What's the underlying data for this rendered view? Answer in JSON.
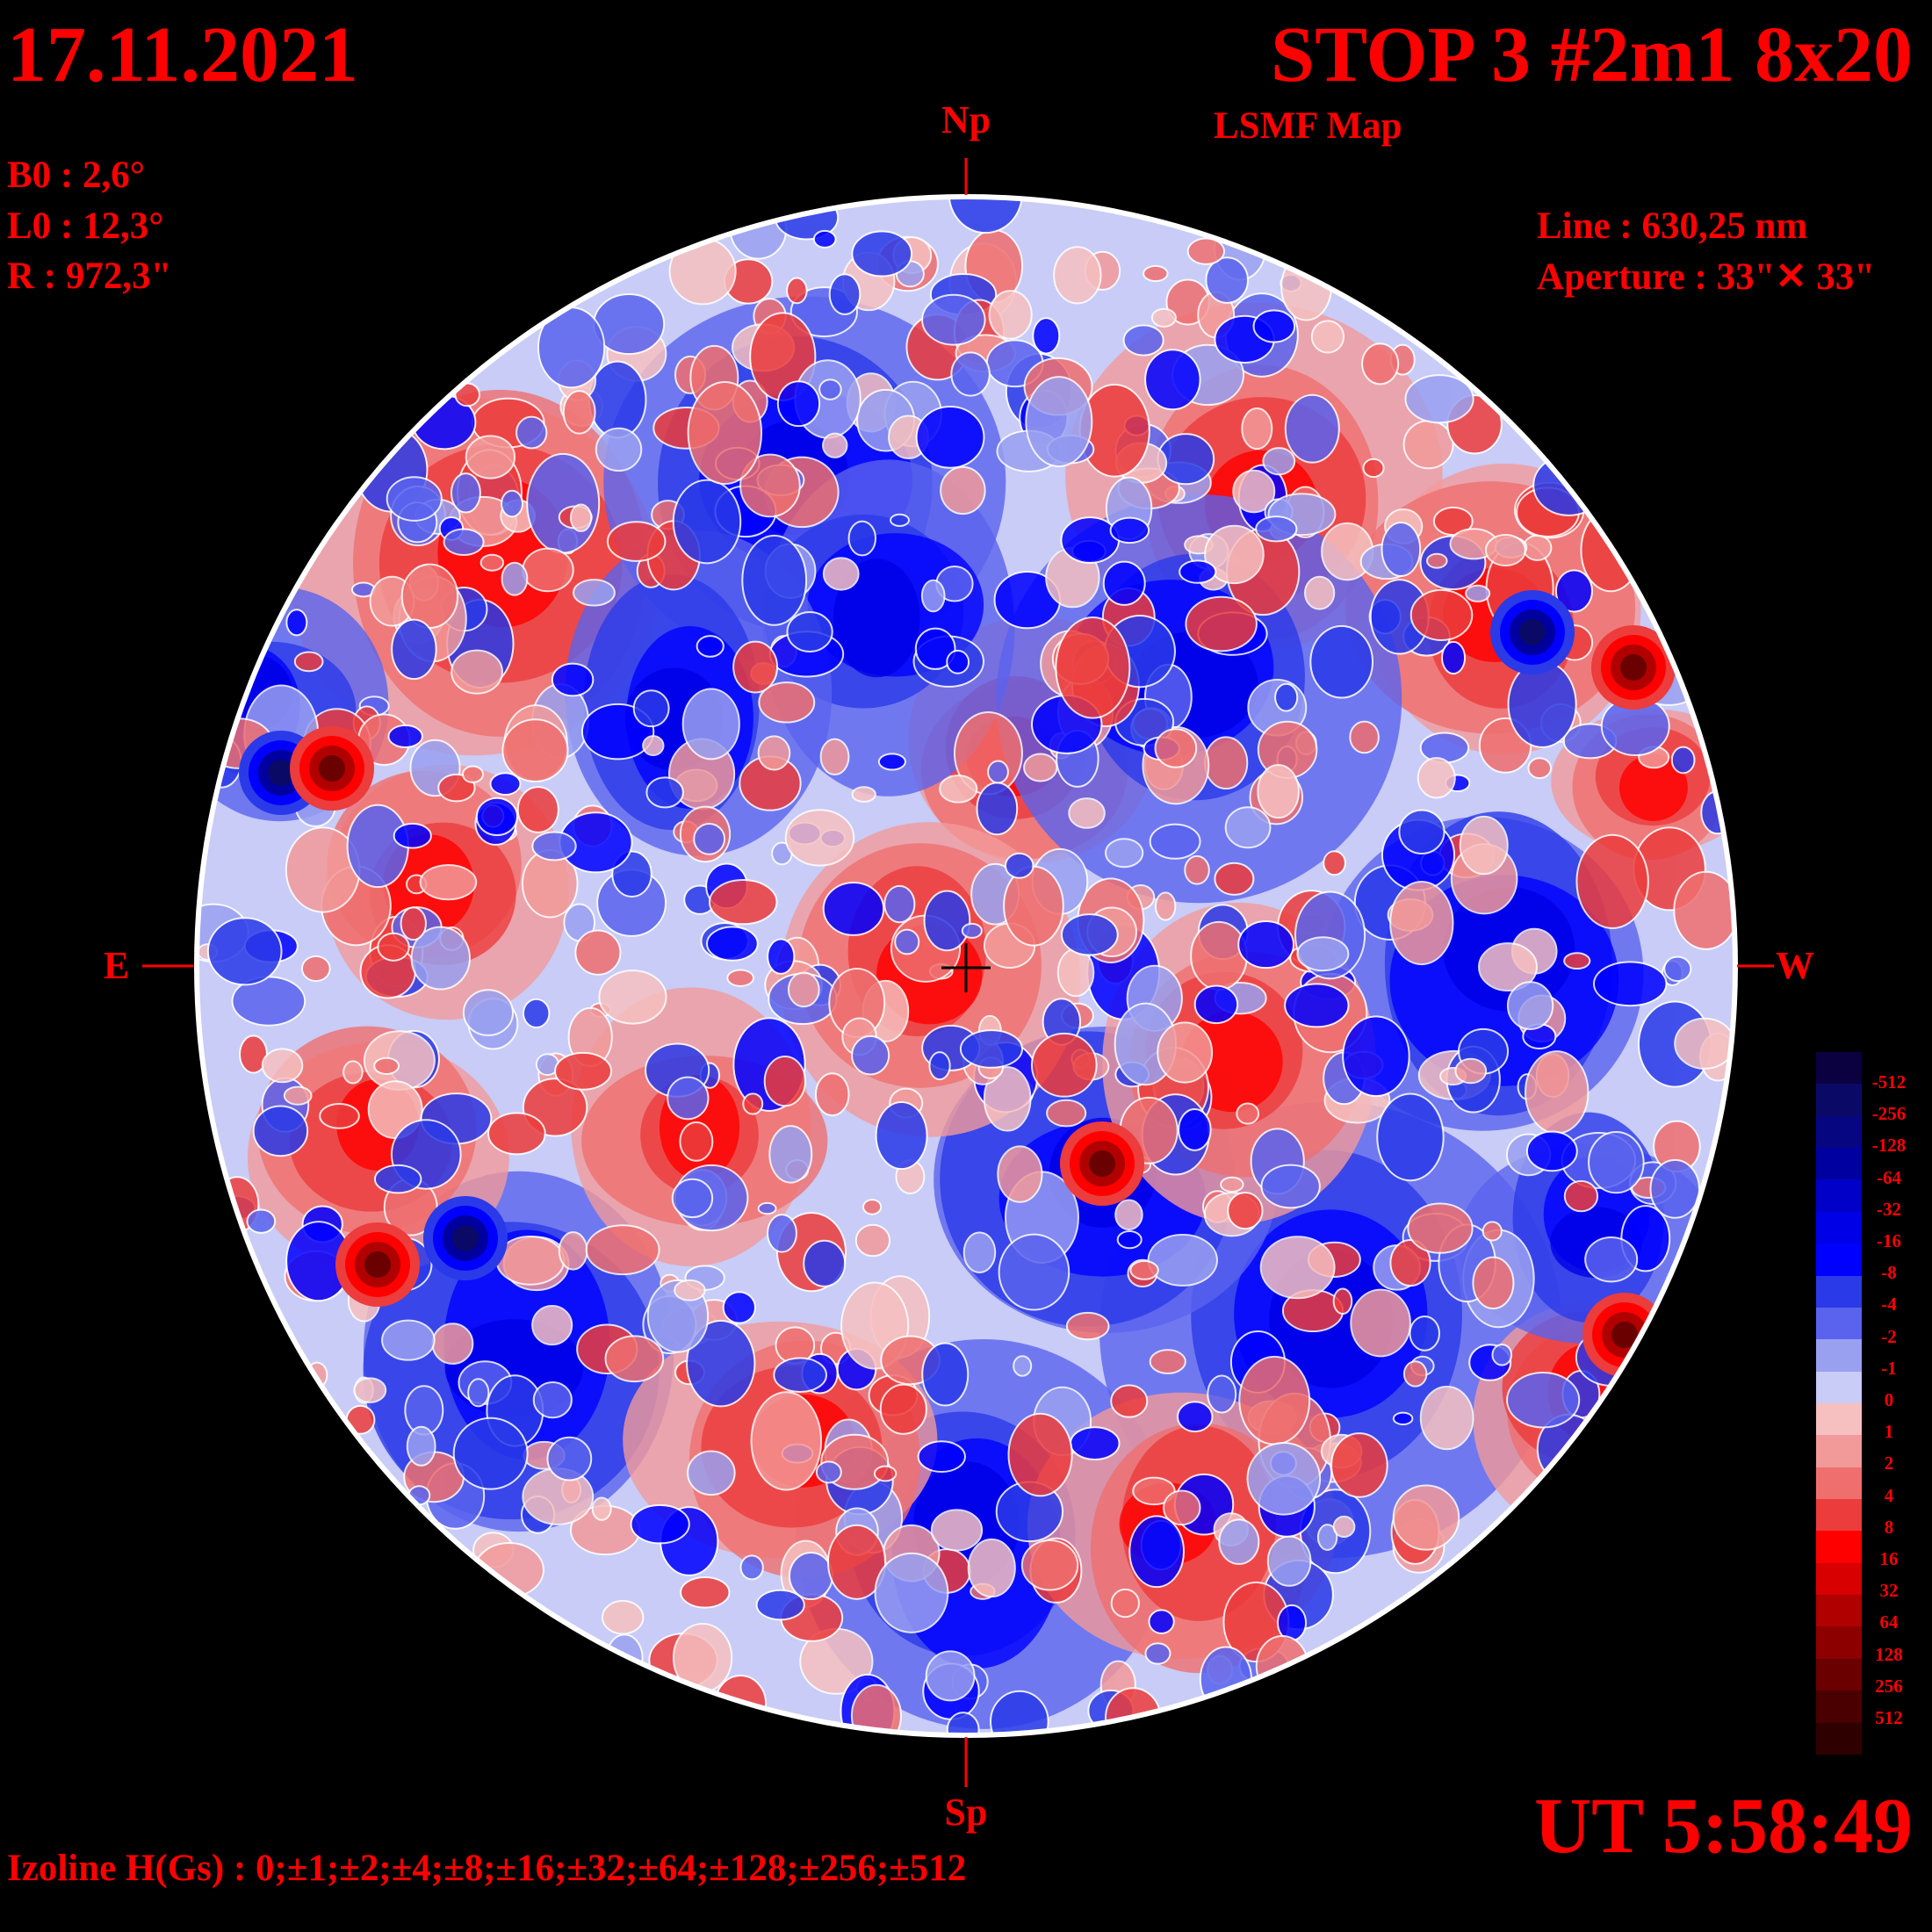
{
  "header": {
    "date": "17.11.2021",
    "title": "STOP 3 #2m1 8x20",
    "subtitle": "LSMF  Map"
  },
  "params": {
    "b0": "B0 : 2,6°",
    "l0": "L0 : 12,3°",
    "r": "R  : 972,3\"",
    "line": "Line :  630,25 nm",
    "aperture": "Aperture : 33\"✕ 33\""
  },
  "directions": {
    "north": "Np",
    "south": "Sp",
    "east": "E",
    "west": "W"
  },
  "time": "UT 5:58:49",
  "isoline": "Izoline H(Gs) : 0;±1;±2;±4;±8;±16;±32;±64;±128;±256;±512",
  "colors": {
    "text": "#ff0000",
    "background": "#000000",
    "disk_border": "#ffffff"
  },
  "colorbar": {
    "labels": [
      "-512",
      "-256",
      "-128",
      "-64",
      "-32",
      "-16",
      "-8",
      "-4",
      "-2",
      "-1",
      "0",
      "1",
      "2",
      "4",
      "8",
      "16",
      "32",
      "64",
      "128",
      "256",
      "512"
    ],
    "swatches": [
      "#0b0040",
      "#0a0a66",
      "#060680",
      "#0000a0",
      "#0000c8",
      "#0000e6",
      "#0000ff",
      "#2a3ae8",
      "#5a63ee",
      "#9aa0f0",
      "#c8ccf7",
      "#f6c0c0",
      "#f29a9a",
      "#ef6f6f",
      "#ec3c3c",
      "#ff0000",
      "#d80000",
      "#b00000",
      "#8c0000",
      "#6a0000",
      "#4a0000",
      "#2e0000"
    ]
  }
}
